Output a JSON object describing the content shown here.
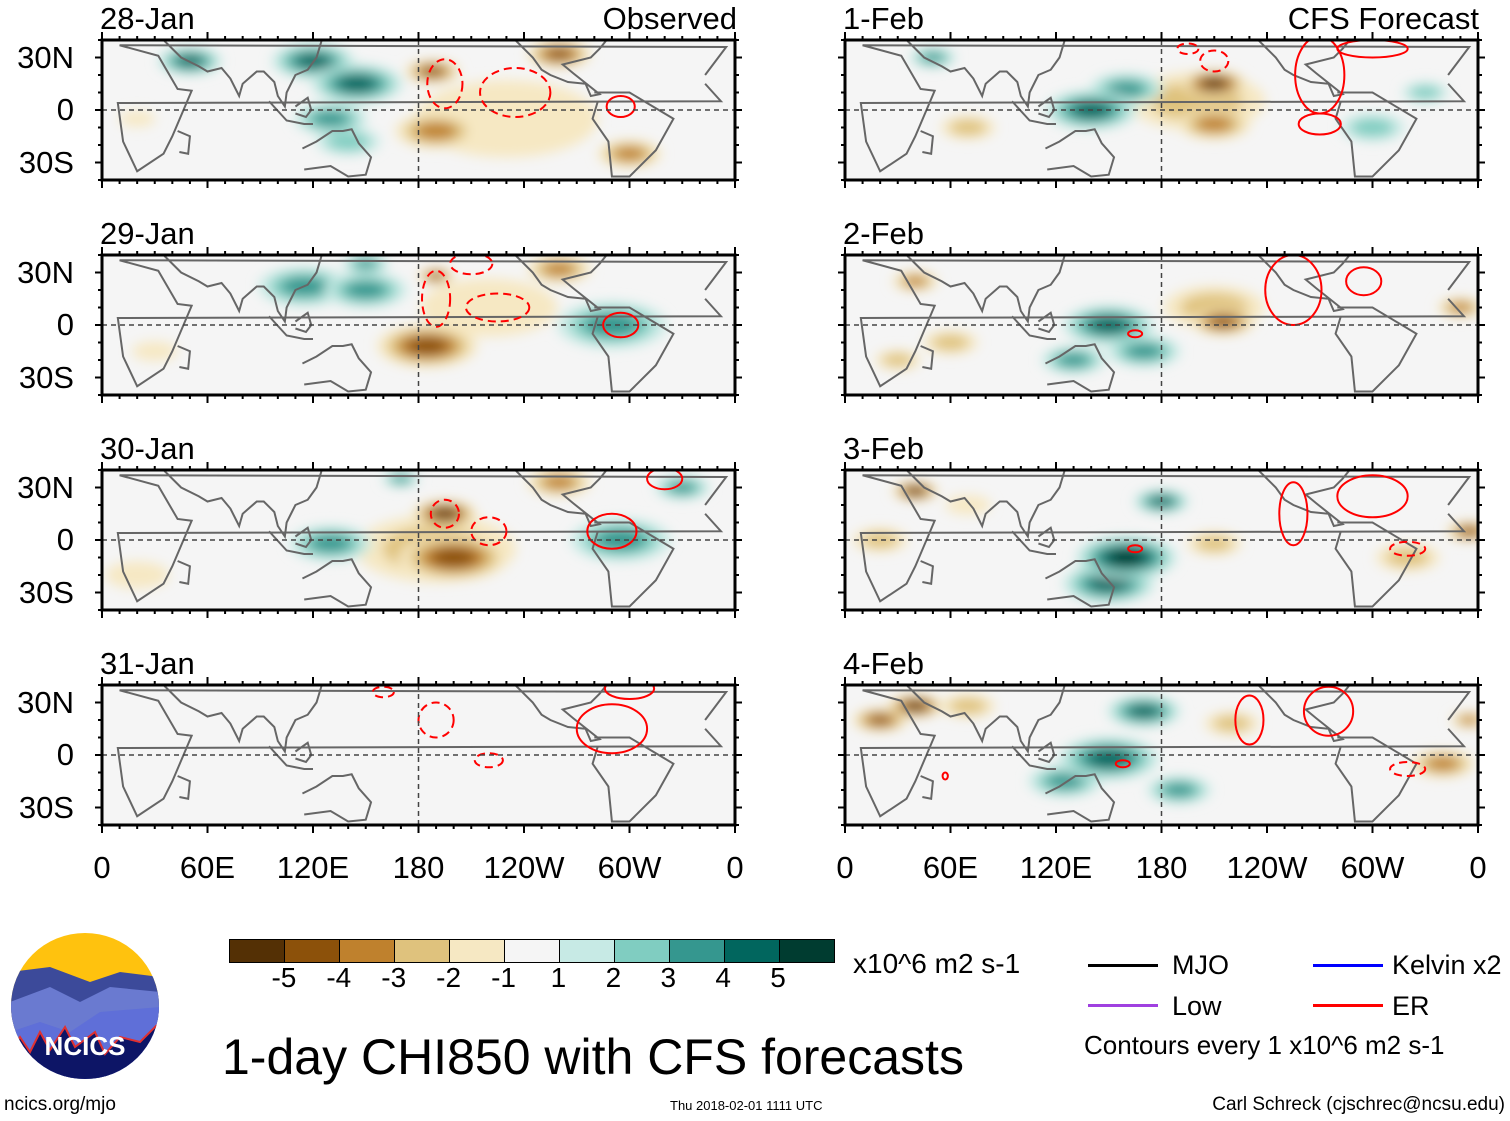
{
  "chart_data": {
    "type": "heatmap",
    "title": "1-day CHI850 with CFS forecasts",
    "units": "x10^6 m2 s-1",
    "lat_range": [
      -40,
      40
    ],
    "lon_range": [
      0,
      360
    ],
    "lat_ticks": [
      "30N",
      "0",
      "30S"
    ],
    "lat_tick_values": [
      30,
      0,
      -30
    ],
    "lon_ticks": [
      "0",
      "60E",
      "120E",
      "180",
      "120W",
      "60W",
      "0"
    ],
    "lon_tick_values": [
      0,
      60,
      120,
      180,
      240,
      300,
      360
    ],
    "colorbar": {
      "labels": [
        "-5",
        "-4",
        "-3",
        "-2",
        "-1",
        "1",
        "2",
        "3",
        "4",
        "5"
      ],
      "colors": [
        "#543005",
        "#8c510a",
        "#bf812d",
        "#dfc27d",
        "#f6e8c3",
        "#f5f5f5",
        "#c7eae5",
        "#80cdc1",
        "#35978f",
        "#01665e",
        "#003c30"
      ]
    },
    "column_headers": {
      "observed": "Observed",
      "forecast": "CFS Forecast"
    },
    "panels": [
      {
        "date": "28-Jan",
        "col": 0,
        "row": 0,
        "features": [
          [
            50,
            28,
            14,
            4
          ],
          [
            120,
            28,
            18,
            4
          ],
          [
            145,
            15,
            20,
            4
          ],
          [
            130,
            -5,
            16,
            3
          ],
          [
            140,
            -18,
            14,
            2
          ],
          [
            188,
            22,
            12,
            -4
          ],
          [
            190,
            -12,
            18,
            -3
          ],
          [
            260,
            32,
            14,
            -4
          ],
          [
            300,
            -25,
            14,
            -3
          ],
          [
            230,
            -5,
            40,
            -1
          ],
          [
            20,
            -5,
            8,
            -1
          ]
        ],
        "er": [
          [
            195,
            15,
            10,
            14,
            -1
          ],
          [
            235,
            10,
            20,
            14,
            -1
          ],
          [
            295,
            2,
            8,
            6,
            1
          ]
        ]
      },
      {
        "date": "29-Jan",
        "col": 0,
        "row": 1,
        "features": [
          [
            115,
            22,
            20,
            3
          ],
          [
            150,
            20,
            18,
            3
          ],
          [
            290,
            0,
            24,
            3
          ],
          [
            150,
            35,
            10,
            3
          ],
          [
            190,
            28,
            8,
            -4
          ],
          [
            185,
            -12,
            22,
            -4
          ],
          [
            260,
            32,
            14,
            -3
          ],
          [
            220,
            10,
            30,
            -1
          ],
          [
            30,
            -15,
            10,
            -1
          ]
        ],
        "er": [
          [
            190,
            15,
            8,
            16,
            -1
          ],
          [
            225,
            10,
            18,
            8,
            -1
          ],
          [
            295,
            0,
            10,
            7,
            1
          ],
          [
            210,
            35,
            12,
            6,
            -1
          ]
        ],
        "extra": []
      },
      {
        "date": "30-Jan",
        "col": 0,
        "row": 2,
        "features": [
          [
            130,
            -2,
            18,
            3
          ],
          [
            295,
            0,
            22,
            3
          ],
          [
            330,
            30,
            12,
            3
          ],
          [
            170,
            35,
            8,
            3
          ],
          [
            195,
            15,
            14,
            -5
          ],
          [
            200,
            -10,
            24,
            -4
          ],
          [
            190,
            -5,
            35,
            -2
          ],
          [
            260,
            33,
            14,
            -3
          ],
          [
            20,
            -20,
            14,
            -1
          ]
        ],
        "er": [
          [
            195,
            15,
            8,
            8,
            -1
          ],
          [
            220,
            5,
            10,
            8,
            -1
          ],
          [
            290,
            5,
            14,
            10,
            1
          ],
          [
            320,
            35,
            10,
            6,
            1
          ]
        ]
      },
      {
        "date": "31-Jan",
        "col": 0,
        "row": 3,
        "features": [],
        "er": [
          [
            190,
            20,
            10,
            10,
            -1
          ],
          [
            220,
            -3,
            8,
            4,
            -1
          ],
          [
            160,
            36,
            6,
            3,
            -1
          ],
          [
            290,
            15,
            20,
            14,
            1
          ],
          [
            300,
            38,
            14,
            6,
            1
          ]
        ]
      },
      {
        "date": "1-Feb",
        "col": 1,
        "row": 0,
        "features": [
          [
            140,
            0,
            20,
            4
          ],
          [
            160,
            12,
            16,
            3
          ],
          [
            70,
            -10,
            12,
            -2
          ],
          [
            300,
            -10,
            14,
            2
          ],
          [
            50,
            30,
            10,
            3
          ],
          [
            210,
            15,
            14,
            -5
          ],
          [
            210,
            -8,
            16,
            -3
          ],
          [
            200,
            5,
            30,
            -2
          ],
          [
            330,
            10,
            10,
            2
          ]
        ],
        "er": [
          [
            195,
            35,
            6,
            3,
            -1
          ],
          [
            210,
            28,
            8,
            6,
            -1
          ],
          [
            270,
            20,
            14,
            22,
            1
          ],
          [
            270,
            -8,
            12,
            6,
            1
          ],
          [
            300,
            35,
            20,
            5,
            1
          ]
        ]
      },
      {
        "date": "2-Feb",
        "col": 1,
        "row": 1,
        "features": [
          [
            150,
            0,
            20,
            4
          ],
          [
            170,
            -15,
            16,
            3
          ],
          [
            130,
            -20,
            14,
            3
          ],
          [
            215,
            2,
            14,
            -4
          ],
          [
            210,
            10,
            22,
            -2
          ],
          [
            40,
            25,
            10,
            -3
          ],
          [
            350,
            10,
            10,
            -3
          ],
          [
            60,
            -10,
            12,
            -2
          ],
          [
            30,
            -20,
            10,
            -2
          ]
        ],
        "er": [
          [
            255,
            20,
            16,
            20,
            1
          ],
          [
            295,
            25,
            10,
            8,
            1
          ],
          [
            165,
            -5,
            4,
            2,
            1
          ]
        ]
      },
      {
        "date": "3-Feb",
        "col": 1,
        "row": 2,
        "features": [
          [
            160,
            -10,
            22,
            5
          ],
          [
            180,
            22,
            12,
            4
          ],
          [
            150,
            -25,
            20,
            4
          ],
          [
            40,
            28,
            10,
            -5
          ],
          [
            355,
            5,
            10,
            -4
          ],
          [
            210,
            -2,
            12,
            -2
          ],
          [
            20,
            0,
            12,
            -2
          ],
          [
            320,
            -10,
            14,
            -2
          ],
          [
            70,
            20,
            10,
            -1
          ]
        ],
        "er": [
          [
            255,
            15,
            8,
            18,
            1
          ],
          [
            300,
            25,
            20,
            12,
            1
          ],
          [
            320,
            -5,
            10,
            4,
            -1
          ],
          [
            165,
            -5,
            4,
            2,
            1
          ]
        ]
      },
      {
        "date": "4-Feb",
        "col": 1,
        "row": 3,
        "features": [
          [
            150,
            -2,
            22,
            4
          ],
          [
            170,
            25,
            16,
            4
          ],
          [
            125,
            -15,
            16,
            3
          ],
          [
            190,
            -20,
            14,
            3
          ],
          [
            40,
            28,
            12,
            -5
          ],
          [
            20,
            20,
            12,
            -4
          ],
          [
            340,
            -5,
            14,
            -3
          ],
          [
            355,
            20,
            8,
            -3
          ],
          [
            70,
            28,
            12,
            -2
          ],
          [
            220,
            18,
            12,
            -2
          ]
        ],
        "er": [
          [
            230,
            20,
            8,
            14,
            1
          ],
          [
            275,
            25,
            14,
            14,
            1
          ],
          [
            320,
            -8,
            10,
            4,
            -1
          ],
          [
            158,
            -5,
            4,
            2,
            1
          ],
          [
            57,
            -12,
            1.5,
            2,
            1
          ]
        ]
      }
    ]
  },
  "legend": {
    "items": [
      {
        "label": "MJO",
        "color": "#000000"
      },
      {
        "label": "Kelvin x2",
        "color": "#0000ff"
      },
      {
        "label": "Low",
        "color": "#a040e0"
      },
      {
        "label": "ER",
        "color": "#ff0000"
      }
    ],
    "contours_note": "Contours every 1 x10^6 m2 s-1"
  },
  "footer": {
    "logo_text": "NCICS",
    "url": "ncics.org/mjo",
    "timestamp": "Thu 2018-02-01 1111 UTC",
    "author": "Carl Schreck (cjschrec@ncsu.edu)"
  }
}
